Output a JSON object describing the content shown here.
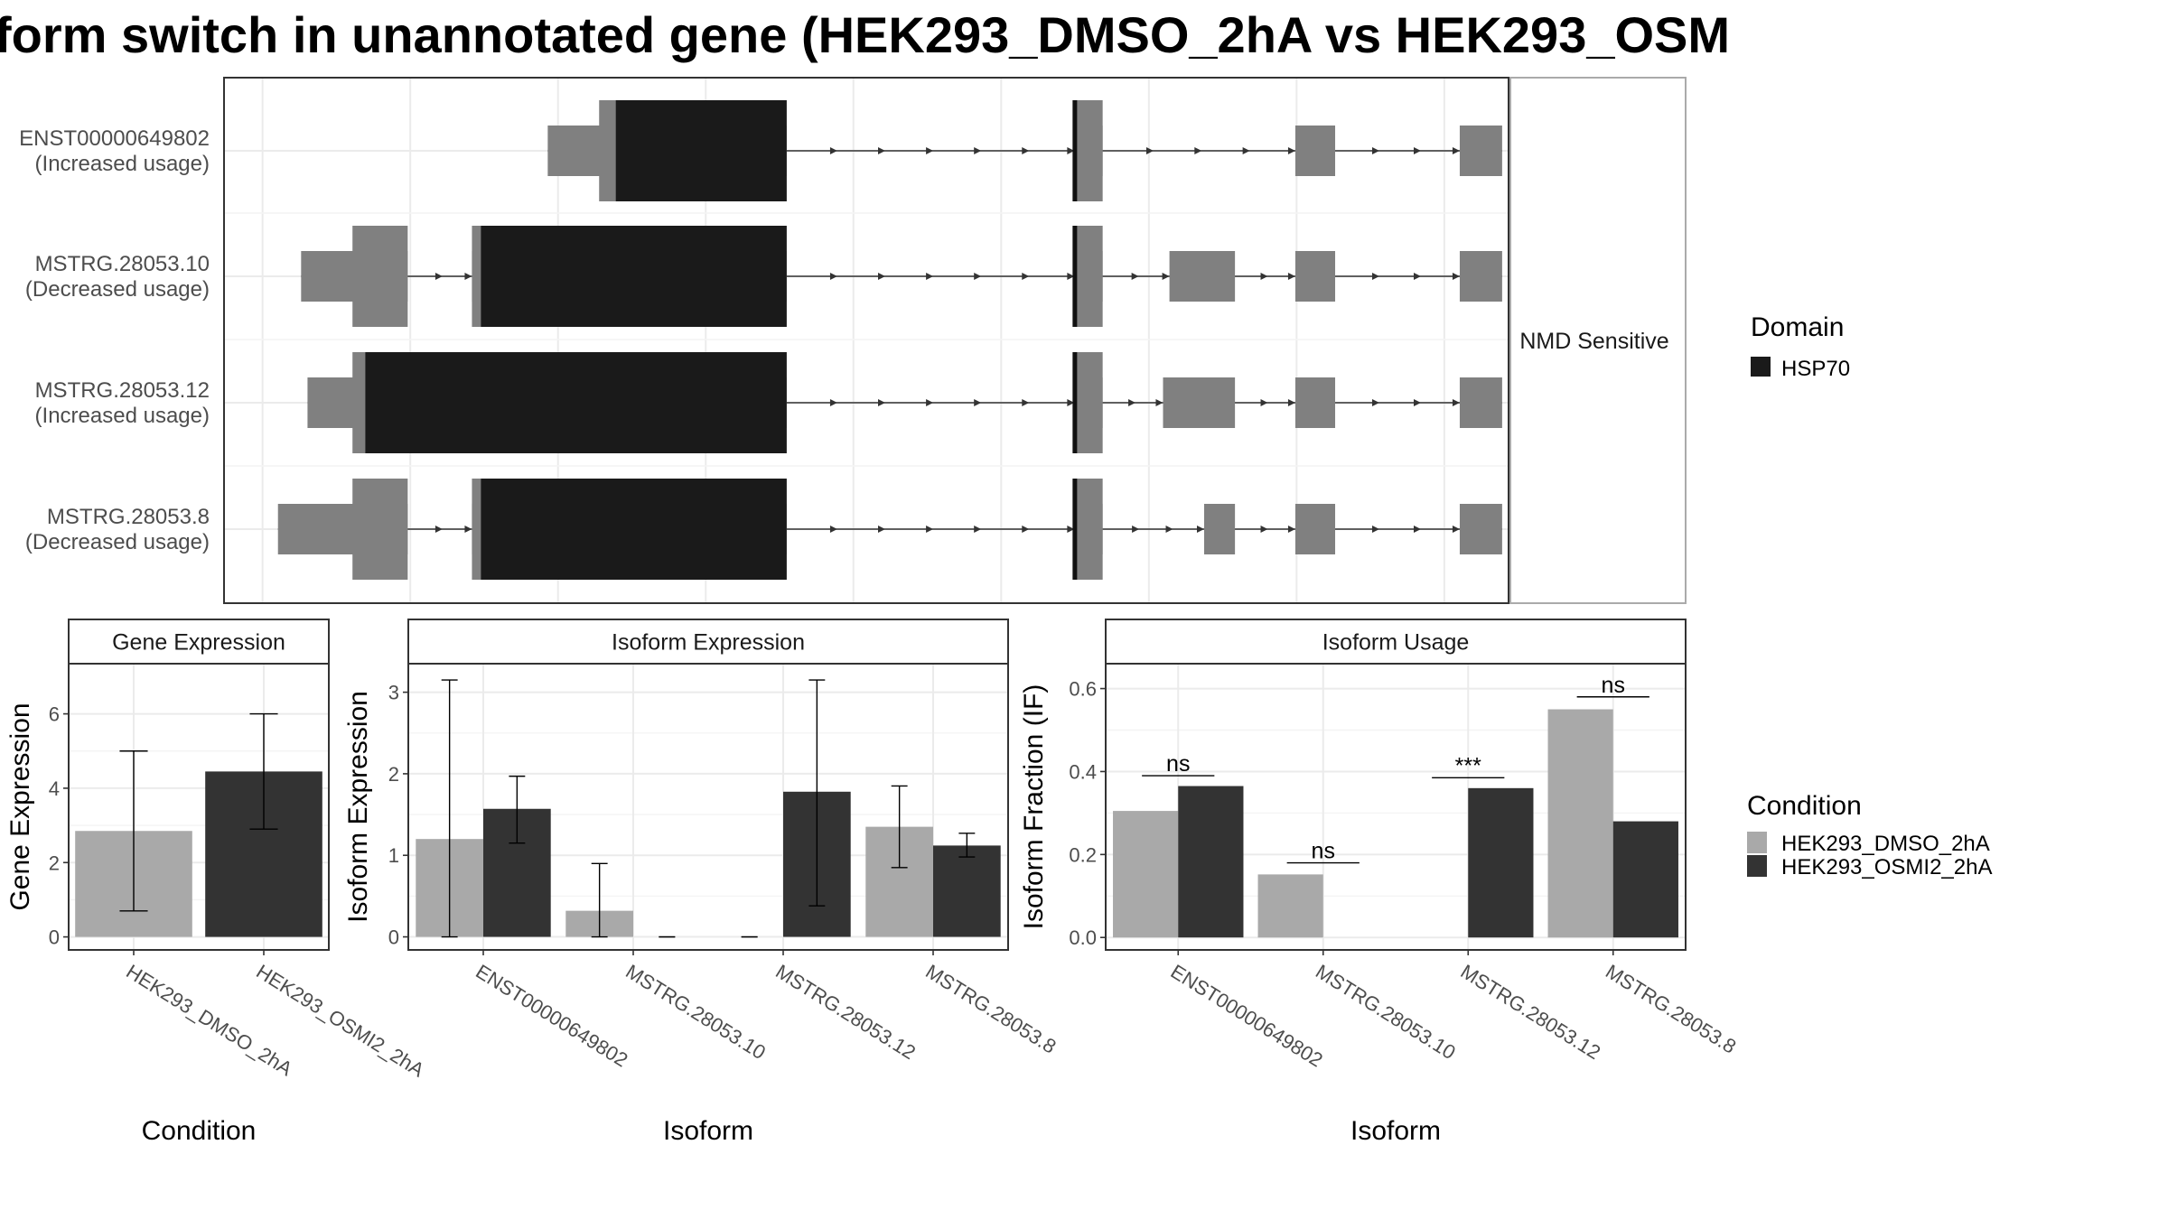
{
  "title": "form switch in unannotated gene (HEK293_DMSO_2hA vs HEK293_OSM",
  "colors": {
    "dmso": "#a9a9a9",
    "osmi": "#333333",
    "domain": "#1a1a1a",
    "utr": "#808080",
    "grid": "#ebebeb",
    "strip_bg": "#ffffff"
  },
  "legends": {
    "domain": {
      "title": "Domain",
      "items": [
        {
          "label": "HSP70",
          "color": "#1a1a1a"
        }
      ]
    },
    "condition": {
      "title": "Condition",
      "items": [
        {
          "label": "HEK293_DMSO_2hA",
          "color": "#a9a9a9"
        },
        {
          "label": "HEK293_OSMI2_2hA",
          "color": "#333333"
        }
      ]
    }
  },
  "chart_data": [
    {
      "type": "other",
      "subtype": "transcript-structure",
      "facet_label": "NMD Sensitive",
      "xlim": [
        0,
        1
      ],
      "transcripts": [
        {
          "id": "ENST00000649802",
          "label_line1": "ENST00000649802",
          "label_line2": "(Increased usage)",
          "exons": [
            [
              0.252,
              0.438
            ],
            [
              0.662,
              0.684
            ],
            [
              0.834,
              0.865
            ],
            [
              0.962,
              0.995
            ]
          ],
          "cds": [
            [
              0.292,
              0.438
            ],
            [
              0.662,
              0.684
            ]
          ],
          "domains": [
            [
              0.305,
              0.438
            ]
          ],
          "strand": "+"
        },
        {
          "id": "MSTRG.28053.10",
          "label_line1": "MSTRG.28053.10",
          "label_line2": "(Decreased usage)",
          "exons": [
            [
              0.06,
              0.143
            ],
            [
              0.193,
              0.438
            ],
            [
              0.662,
              0.684
            ],
            [
              0.736,
              0.787
            ],
            [
              0.834,
              0.865
            ],
            [
              0.962,
              0.995
            ]
          ],
          "cds": [
            [
              0.1,
              0.143
            ],
            [
              0.193,
              0.438
            ],
            [
              0.662,
              0.684
            ]
          ],
          "domains": [
            [
              0.2,
              0.438
            ]
          ],
          "strand": "+"
        },
        {
          "id": "MSTRG.28053.12",
          "label_line1": "MSTRG.28053.12",
          "label_line2": "(Increased usage)",
          "exons": [
            [
              0.065,
              0.438
            ],
            [
              0.662,
              0.684
            ],
            [
              0.731,
              0.787
            ],
            [
              0.834,
              0.865
            ],
            [
              0.962,
              0.995
            ]
          ],
          "cds": [
            [
              0.1,
              0.438
            ],
            [
              0.662,
              0.684
            ]
          ],
          "domains": [
            [
              0.11,
              0.438
            ]
          ],
          "strand": "+"
        },
        {
          "id": "MSTRG.28053.8",
          "label_line1": "MSTRG.28053.8",
          "label_line2": "(Decreased usage)",
          "exons": [
            [
              0.042,
              0.143
            ],
            [
              0.193,
              0.438
            ],
            [
              0.662,
              0.684
            ],
            [
              0.763,
              0.787
            ],
            [
              0.834,
              0.865
            ],
            [
              0.962,
              0.995
            ]
          ],
          "cds": [
            [
              0.1,
              0.143
            ],
            [
              0.193,
              0.438
            ],
            [
              0.662,
              0.684
            ]
          ],
          "domains": [
            [
              0.2,
              0.438
            ]
          ],
          "strand": "+"
        }
      ]
    },
    {
      "type": "bar",
      "strip": "Gene Expression",
      "xlabel": "Condition",
      "ylabel": "Gene Expression",
      "ylim": [
        -0.35,
        7.35
      ],
      "yticks": [
        0,
        2,
        4,
        6
      ],
      "categories": [
        "HEK293_DMSO_2hA",
        "HEK293_OSMI2_2hA"
      ],
      "series": [
        {
          "name": "HEK293_DMSO_2hA",
          "values": [
            2.85,
            null
          ]
        },
        {
          "name": "HEK293_OSMI2_2hA",
          "values": [
            null,
            4.45
          ]
        }
      ],
      "errors": [
        [
          0.7,
          5.0
        ],
        [
          2.9,
          6.0
        ]
      ]
    },
    {
      "type": "bar",
      "strip": "Isoform Expression",
      "xlabel": "Isoform",
      "ylabel": "Isoform Expression",
      "ylim": [
        -0.16,
        3.35
      ],
      "yticks": [
        0,
        1,
        2,
        3
      ],
      "categories": [
        "ENST00000649802",
        "MSTRG.28053.10",
        "MSTRG.28053.12",
        "MSTRG.28053.8"
      ],
      "series": [
        {
          "name": "HEK293_DMSO_2hA",
          "values": [
            1.2,
            0.32,
            0.0,
            1.35
          ],
          "errors": [
            [
              0.0,
              3.15
            ],
            [
              0.0,
              0.9
            ],
            [
              0.0,
              0.0
            ],
            [
              0.85,
              1.85
            ]
          ]
        },
        {
          "name": "HEK293_OSMI2_2hA",
          "values": [
            1.57,
            0.0,
            1.78,
            1.12
          ],
          "errors": [
            [
              1.15,
              1.97
            ],
            [
              0.0,
              0.0
            ],
            [
              0.38,
              3.15
            ],
            [
              0.98,
              1.27
            ]
          ]
        }
      ]
    },
    {
      "type": "bar",
      "strip": "Isoform Usage",
      "xlabel": "Isoform",
      "ylabel": "Isoform Fraction (IF)",
      "ylim": [
        -0.03,
        0.66
      ],
      "yticks": [
        0.0,
        0.2,
        0.4,
        0.6
      ],
      "yticklabels": [
        "0.0",
        "0.2",
        "0.4",
        "0.6"
      ],
      "categories": [
        "ENST00000649802",
        "MSTRG.28053.10",
        "MSTRG.28053.12",
        "MSTRG.28053.8"
      ],
      "series": [
        {
          "name": "HEK293_DMSO_2hA",
          "values": [
            0.305,
            0.152,
            0.0,
            0.55
          ]
        },
        {
          "name": "HEK293_OSMI2_2hA",
          "values": [
            0.365,
            0.0,
            0.36,
            0.28
          ]
        }
      ],
      "annotations": [
        {
          "category": "ENST00000649802",
          "text": "ns",
          "y": 0.39
        },
        {
          "category": "MSTRG.28053.10",
          "text": "ns",
          "y": 0.18
        },
        {
          "category": "MSTRG.28053.12",
          "text": "***",
          "y": 0.385
        },
        {
          "category": "MSTRG.28053.8",
          "text": "ns",
          "y": 0.58
        }
      ]
    }
  ]
}
